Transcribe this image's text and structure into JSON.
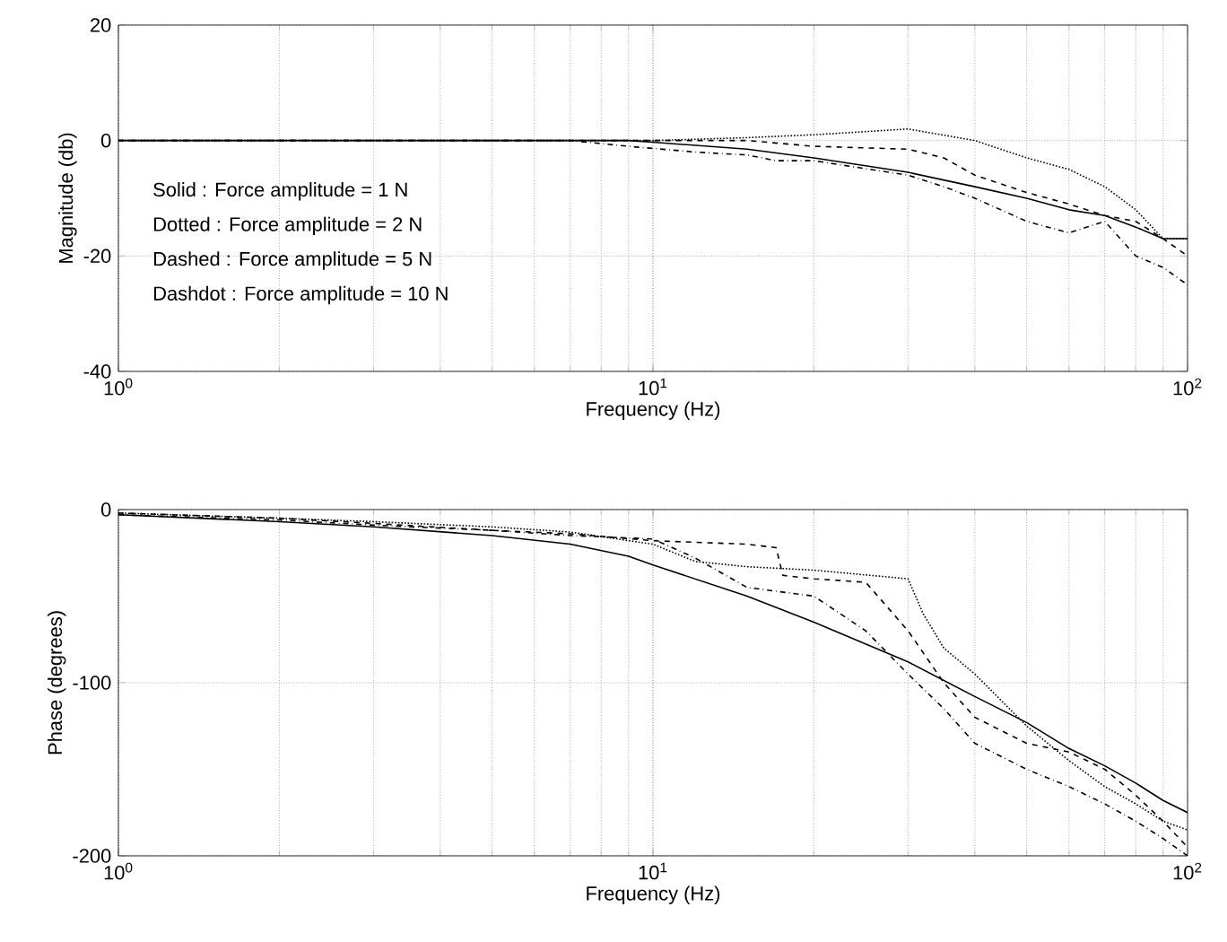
{
  "chart_data": [
    {
      "type": "line",
      "xlabel": "Frequency (Hz)",
      "ylabel": "Magnitude (db)",
      "log": "x",
      "grid": true,
      "xlim": [
        1,
        100
      ],
      "xticks": [
        {
          "value": 1,
          "label": "10$^{0}$"
        },
        {
          "value": 10,
          "label": "10$^{1}$"
        },
        {
          "value": 100,
          "label": "10$^{2}$"
        }
      ],
      "ylim": [
        -40,
        20
      ],
      "yticks": [
        -40,
        -20,
        0,
        20
      ],
      "annotations": [
        "Solid : Force amplitude = 1 N",
        "Dotted : Force amplitude = 2 N",
        "Dashed : Force amplitude = 5 N",
        "Dashdot : Force amplitude = 10 N"
      ],
      "series": [
        {
          "color": "#000000",
          "line_style": "solid",
          "x": [
            1,
            2,
            3,
            5,
            7,
            9,
            10,
            15,
            20,
            30,
            40,
            50,
            60,
            70,
            80,
            90,
            100
          ],
          "values": [
            0,
            0,
            0,
            0,
            0,
            0,
            -0.3,
            -1.5,
            -3,
            -5.5,
            -8,
            -10,
            -12,
            -13,
            -15,
            -17,
            -17
          ]
        },
        {
          "color": "#000000",
          "line_style": "dotted",
          "x": [
            1,
            2,
            3,
            5,
            7,
            10,
            15,
            20,
            30,
            40,
            50,
            60,
            70,
            80,
            90,
            100
          ],
          "values": [
            0,
            0,
            0,
            0,
            0,
            0,
            0.5,
            1,
            2,
            0,
            -3,
            -5,
            -8,
            -12,
            -17,
            -17
          ]
        },
        {
          "color": "#000000",
          "line_style": "dashed",
          "x": [
            1,
            2,
            3,
            5,
            7,
            9,
            15,
            20,
            30,
            35,
            40,
            50,
            60,
            70,
            80,
            90,
            100
          ],
          "values": [
            0,
            0,
            0,
            0,
            0,
            0,
            0,
            -1,
            -1.5,
            -3,
            -6,
            -9,
            -11,
            -13,
            -14,
            -17,
            -20
          ]
        },
        {
          "color": "#000000",
          "line_style": "dashdot",
          "x": [
            1,
            2,
            3,
            5,
            7,
            9,
            12,
            15,
            17,
            20,
            30,
            35,
            40,
            50,
            60,
            70,
            80,
            90,
            100
          ],
          "values": [
            0,
            0,
            0,
            0,
            0,
            -1,
            -2,
            -2.5,
            -3.5,
            -3.5,
            -6,
            -8,
            -10,
            -14,
            -16,
            -14,
            -20,
            -22,
            -25
          ]
        }
      ]
    },
    {
      "type": "line",
      "xlabel": "Frequency (Hz)",
      "ylabel": "Phase (degrees)",
      "log": "x",
      "grid": true,
      "xlim": [
        1,
        100
      ],
      "xticks": [
        {
          "value": 1,
          "label": "10$^{0}$"
        },
        {
          "value": 10,
          "label": "10$^{1}$"
        },
        {
          "value": 100,
          "label": "10$^{2}$"
        }
      ],
      "ylim": [
        -200,
        0
      ],
      "yticks": [
        -200,
        -100,
        0
      ],
      "series": [
        {
          "color": "#000000",
          "line_style": "solid",
          "x": [
            1,
            2,
            3,
            5,
            7,
            9,
            10,
            15,
            20,
            30,
            40,
            50,
            60,
            70,
            80,
            90,
            100
          ],
          "values": [
            -3,
            -7,
            -10,
            -15,
            -20,
            -27,
            -32,
            -50,
            -65,
            -88,
            -108,
            -123,
            -138,
            -148,
            -158,
            -168,
            -175
          ]
        },
        {
          "color": "#000000",
          "line_style": "dotted",
          "x": [
            1,
            2,
            3,
            5,
            7,
            10,
            12,
            15,
            20,
            30,
            32,
            35,
            40,
            50,
            60,
            70,
            80,
            90,
            100
          ],
          "values": [
            -2,
            -5,
            -7,
            -10,
            -13,
            -20,
            -30,
            -33,
            -35,
            -40,
            -60,
            -80,
            -95,
            -125,
            -145,
            -160,
            -170,
            -180,
            -185
          ]
        },
        {
          "color": "#000000",
          "line_style": "dashed",
          "x": [
            1,
            2,
            3,
            5,
            7,
            10,
            15,
            17,
            17.5,
            20,
            25,
            30,
            35,
            40,
            50,
            60,
            70,
            80,
            90,
            100
          ],
          "values": [
            -2,
            -5,
            -8,
            -12,
            -14,
            -18,
            -20,
            -22,
            -38,
            -40,
            -42,
            -70,
            -100,
            -120,
            -135,
            -140,
            -150,
            -165,
            -180,
            -195
          ]
        },
        {
          "color": "#000000",
          "line_style": "dashdot",
          "x": [
            1,
            2,
            3,
            5,
            7,
            10,
            12,
            15,
            20,
            25,
            30,
            35,
            40,
            50,
            60,
            70,
            80,
            90,
            100
          ],
          "values": [
            -3,
            -6,
            -9,
            -12,
            -15,
            -17,
            -28,
            -45,
            -50,
            -70,
            -95,
            -115,
            -135,
            -150,
            -160,
            -170,
            -180,
            -190,
            -200
          ]
        }
      ]
    }
  ]
}
